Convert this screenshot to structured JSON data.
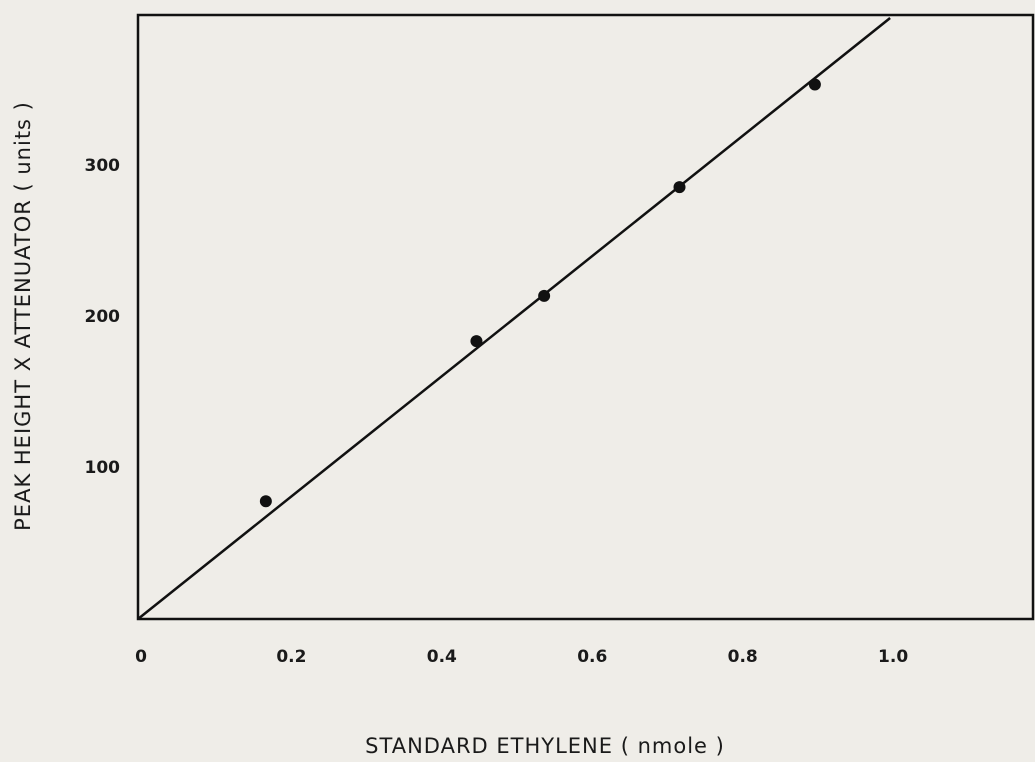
{
  "chart_data": {
    "type": "scatter",
    "x_label": "STANDARD   ETHYLENE  ( nmole )",
    "y_label": "PEAK  HEIGHT X ATTENUATOR ( units )",
    "xlim": [
      0,
      1.19
    ],
    "ylim": [
      0,
      400
    ],
    "xticks": [
      0,
      0.2,
      0.4,
      0.6,
      0.8,
      {
        "value": 1,
        "label": "1.0"
      }
    ],
    "yticks": [
      100,
      200,
      300
    ],
    "series": [
      {
        "color": "#111111",
        "x": [
          0.17,
          0.45,
          0.54,
          0.72,
          0.9
        ],
        "values": [
          78,
          184,
          214,
          286,
          354
        ]
      }
    ],
    "fit_line": {
      "color": "#111111",
      "x": [
        0,
        1.0
      ],
      "values": [
        0,
        398
      ]
    }
  }
}
